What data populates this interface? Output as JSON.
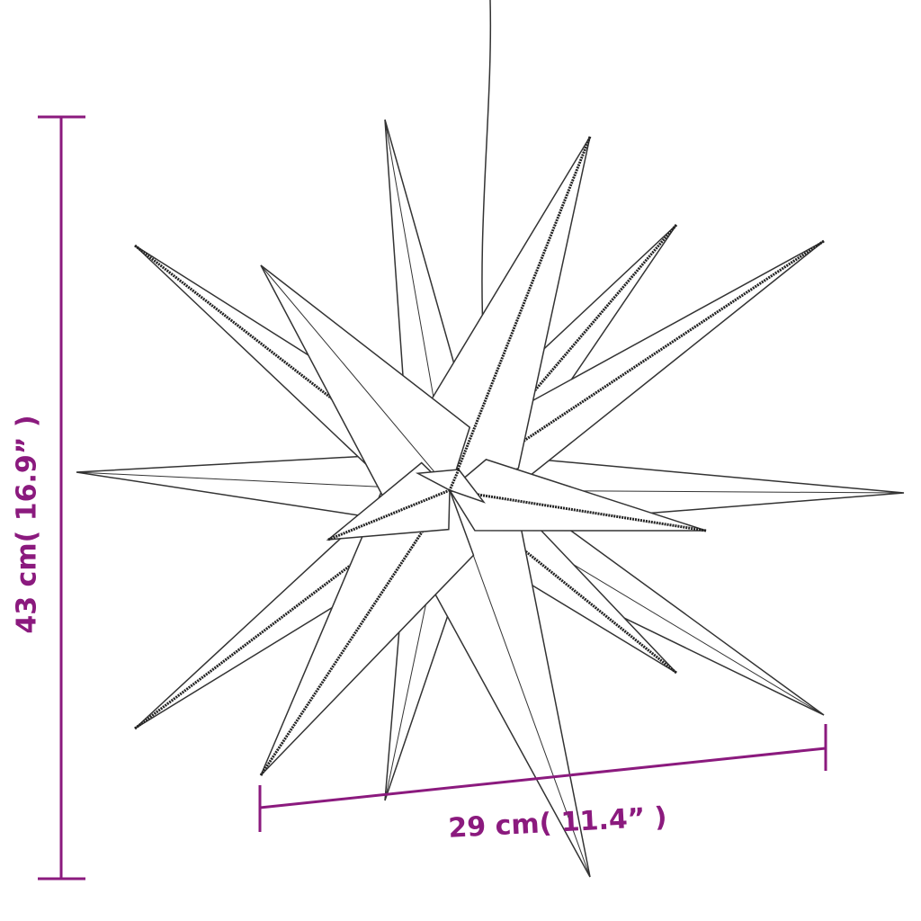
{
  "dimensions": {
    "height_label": "43 cm( 16.9” )",
    "width_label": "29 cm( 11.4” )",
    "color": "#8b1a7e"
  },
  "product": {
    "icon": "led-star-icon",
    "line_color": "#333333"
  }
}
